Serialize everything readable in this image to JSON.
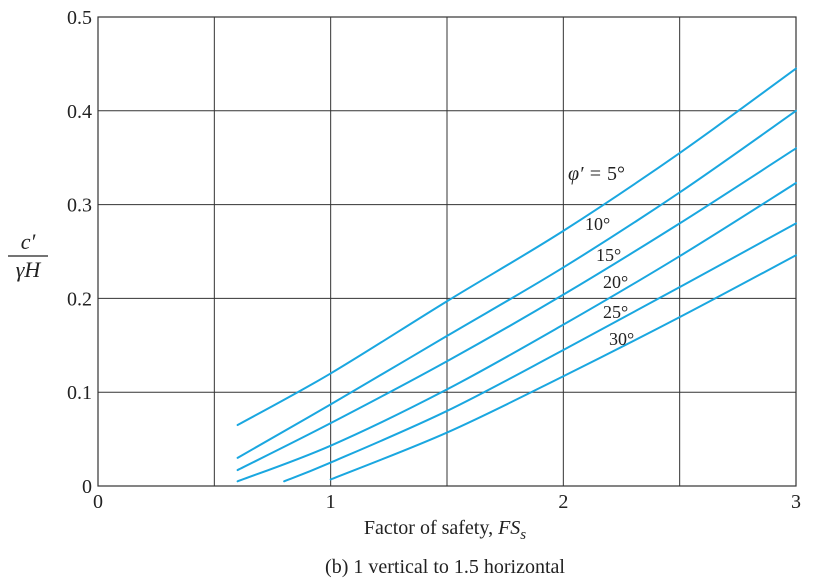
{
  "chart_data": {
    "type": "line",
    "caption": "(b) 1 vertical to 1.5 horizontal",
    "xlabel": "Factor of safety, ",
    "xlabel_symbol": "FS",
    "xlabel_subscript": "s",
    "ylabel_numerator": "c′",
    "ylabel_denominator": "γH",
    "xlim": [
      0,
      3
    ],
    "ylim": [
      0,
      0.5
    ],
    "x_ticks": [
      0,
      1,
      2,
      3
    ],
    "y_ticks": [
      0,
      0.1,
      0.2,
      0.3,
      0.4,
      0.5
    ],
    "x_tick_labels": [
      "0",
      "1",
      "2",
      "3"
    ],
    "y_tick_labels": [
      "0",
      "0.1",
      "0.2",
      "0.3",
      "0.4",
      "0.5"
    ],
    "x_gridlines": [
      0.5,
      1,
      1.5,
      2,
      2.5
    ],
    "y_gridlines": [
      0.1,
      0.2,
      0.3,
      0.4
    ],
    "grid": true,
    "line_color": "#1aa7e0",
    "series_label_prefix": "φ′ = ",
    "series": [
      {
        "name": "5°",
        "x": [
          0.6,
          1.0,
          1.5,
          2.0,
          2.5,
          3.0
        ],
        "y": [
          0.065,
          0.12,
          0.197,
          0.272,
          0.355,
          0.445
        ]
      },
      {
        "name": "10°",
        "x": [
          0.6,
          1.0,
          1.5,
          2.0,
          2.5,
          3.0
        ],
        "y": [
          0.03,
          0.087,
          0.16,
          0.233,
          0.313,
          0.4
        ]
      },
      {
        "name": "15°",
        "x": [
          0.6,
          1.0,
          1.5,
          2.0,
          2.5,
          3.0
        ],
        "y": [
          0.017,
          0.067,
          0.133,
          0.204,
          0.28,
          0.36
        ]
      },
      {
        "name": "20°",
        "x": [
          0.6,
          1.0,
          1.5,
          2.0,
          2.5,
          3.0
        ],
        "y": [
          0.005,
          0.043,
          0.103,
          0.172,
          0.245,
          0.323
        ]
      },
      {
        "name": "25°",
        "x": [
          0.8,
          1.0,
          1.5,
          2.0,
          2.5,
          3.0
        ],
        "y": [
          0.005,
          0.025,
          0.08,
          0.145,
          0.212,
          0.28
        ]
      },
      {
        "name": "30°",
        "x": [
          1.0,
          1.5,
          2.0,
          2.5,
          3.0
        ],
        "y": [
          0.007,
          0.057,
          0.117,
          0.18,
          0.246
        ]
      }
    ]
  }
}
